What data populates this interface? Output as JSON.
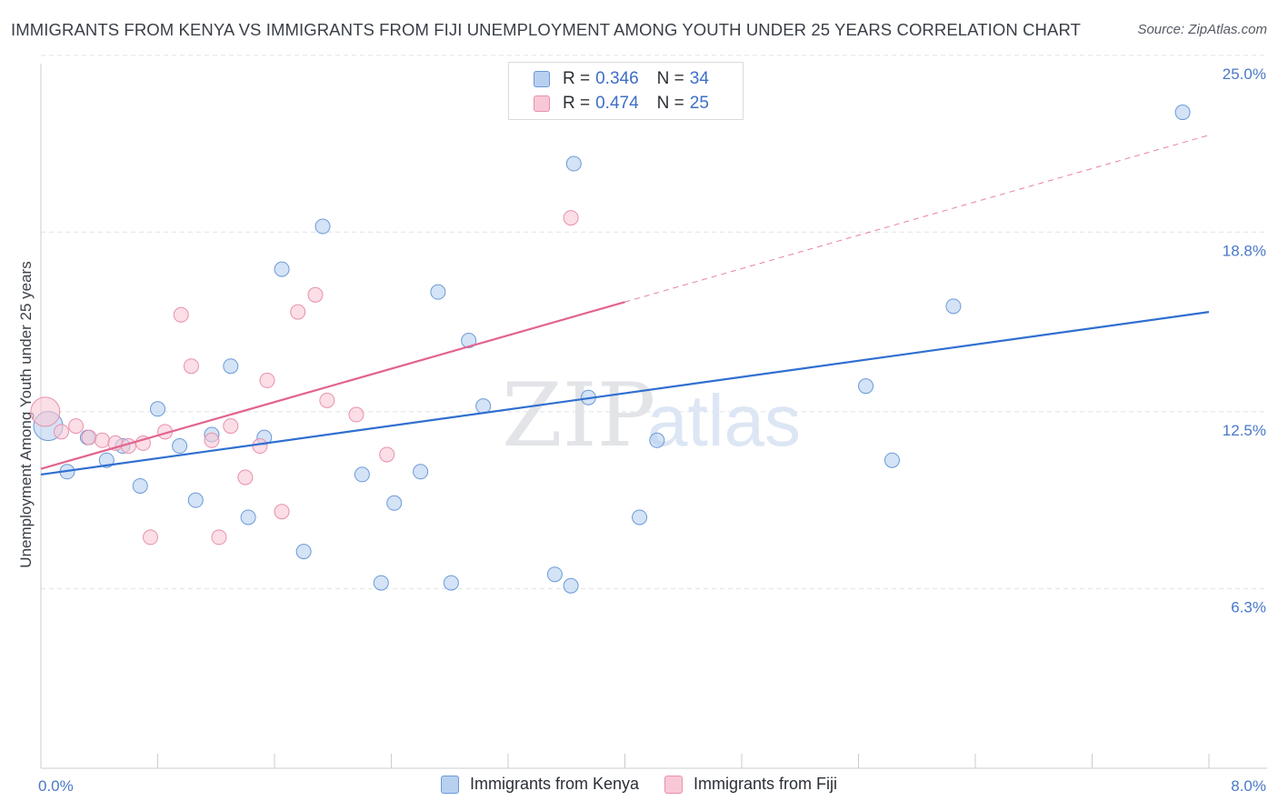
{
  "chart_data": {
    "type": "scatter",
    "title": "IMMIGRANTS FROM KENYA VS IMMIGRANTS FROM FIJI UNEMPLOYMENT AMONG YOUTH UNDER 25 YEARS CORRELATION CHART",
    "source": "Source: ZipAtlas.com",
    "xlabel": "",
    "ylabel": "Unemployment Among Youth under 25 years",
    "xlim": [
      0,
      8
    ],
    "ylim": [
      0,
      25.6
    ],
    "x_tick_labels": [
      "0.0%",
      "8.0%"
    ],
    "y_ticks": [
      {
        "value": 6.3,
        "label": "6.3%"
      },
      {
        "value": 12.5,
        "label": "12.5%"
      },
      {
        "value": 18.8,
        "label": "18.8%"
      },
      {
        "value": 25.0,
        "label": "25.0%"
      }
    ],
    "watermark": {
      "zip": "ZIP",
      "atlas": "atlas"
    },
    "legend_top": [
      {
        "r_key": "R =",
        "r": "0.346",
        "n_key": "N =",
        "n": "34"
      },
      {
        "r_key": "R =",
        "r": "0.474",
        "n_key": "N =",
        "n": "25"
      }
    ],
    "series": [
      {
        "name": "Immigrants from Kenya",
        "fill": "#b8d0f0",
        "stroke": "#6a9ad8",
        "line_color": "#2f6fd0",
        "trend": {
          "x0": 0.0,
          "y0": 10.3,
          "x1": 8.0,
          "y1": 16.0,
          "dash_from": null
        },
        "points": [
          {
            "x": 0.05,
            "y": 12.0,
            "size": "large"
          },
          {
            "x": 0.18,
            "y": 10.4
          },
          {
            "x": 0.32,
            "y": 11.6
          },
          {
            "x": 0.45,
            "y": 10.8
          },
          {
            "x": 0.56,
            "y": 11.3
          },
          {
            "x": 0.68,
            "y": 9.9
          },
          {
            "x": 0.8,
            "y": 12.6
          },
          {
            "x": 0.95,
            "y": 11.3
          },
          {
            "x": 1.06,
            "y": 9.4
          },
          {
            "x": 1.17,
            "y": 11.7
          },
          {
            "x": 1.3,
            "y": 14.1
          },
          {
            "x": 1.42,
            "y": 8.8
          },
          {
            "x": 1.53,
            "y": 11.6
          },
          {
            "x": 1.65,
            "y": 17.5
          },
          {
            "x": 1.8,
            "y": 7.6
          },
          {
            "x": 1.93,
            "y": 19.0
          },
          {
            "x": 2.2,
            "y": 10.3
          },
          {
            "x": 2.33,
            "y": 6.5
          },
          {
            "x": 2.42,
            "y": 9.3
          },
          {
            "x": 2.6,
            "y": 10.4
          },
          {
            "x": 2.72,
            "y": 16.7
          },
          {
            "x": 2.81,
            "y": 6.5
          },
          {
            "x": 2.93,
            "y": 15.0
          },
          {
            "x": 3.03,
            "y": 12.7
          },
          {
            "x": 3.52,
            "y": 6.8
          },
          {
            "x": 3.63,
            "y": 6.4
          },
          {
            "x": 3.65,
            "y": 21.2
          },
          {
            "x": 3.75,
            "y": 13.0
          },
          {
            "x": 4.1,
            "y": 8.8
          },
          {
            "x": 4.22,
            "y": 11.5
          },
          {
            "x": 5.65,
            "y": 13.4
          },
          {
            "x": 5.83,
            "y": 10.8
          },
          {
            "x": 6.25,
            "y": 16.2
          },
          {
            "x": 7.82,
            "y": 23.0
          }
        ]
      },
      {
        "name": "Immigrants from Fiji",
        "fill": "#f8c8d6",
        "stroke": "#e890ac",
        "line_color": "#e2638e",
        "trend": {
          "x0": 0.0,
          "y0": 10.5,
          "x1": 8.0,
          "y1": 22.2,
          "dash_from": 4.0
        },
        "points": [
          {
            "x": 0.03,
            "y": 12.5,
            "size": "large"
          },
          {
            "x": 0.14,
            "y": 11.8
          },
          {
            "x": 0.24,
            "y": 12.0
          },
          {
            "x": 0.33,
            "y": 11.6
          },
          {
            "x": 0.42,
            "y": 11.5
          },
          {
            "x": 0.51,
            "y": 11.4
          },
          {
            "x": 0.6,
            "y": 11.3
          },
          {
            "x": 0.7,
            "y": 11.4
          },
          {
            "x": 0.75,
            "y": 8.1
          },
          {
            "x": 0.85,
            "y": 11.8
          },
          {
            "x": 0.96,
            "y": 15.9
          },
          {
            "x": 1.03,
            "y": 14.1
          },
          {
            "x": 1.17,
            "y": 11.5
          },
          {
            "x": 1.22,
            "y": 8.1
          },
          {
            "x": 1.3,
            "y": 12.0
          },
          {
            "x": 1.4,
            "y": 10.2
          },
          {
            "x": 1.5,
            "y": 11.3
          },
          {
            "x": 1.55,
            "y": 13.6
          },
          {
            "x": 1.65,
            "y": 9.0
          },
          {
            "x": 1.76,
            "y": 16.0
          },
          {
            "x": 1.88,
            "y": 16.6
          },
          {
            "x": 1.96,
            "y": 12.9
          },
          {
            "x": 2.16,
            "y": 12.4
          },
          {
            "x": 2.37,
            "y": 11.0
          },
          {
            "x": 3.63,
            "y": 19.3
          }
        ]
      }
    ]
  }
}
